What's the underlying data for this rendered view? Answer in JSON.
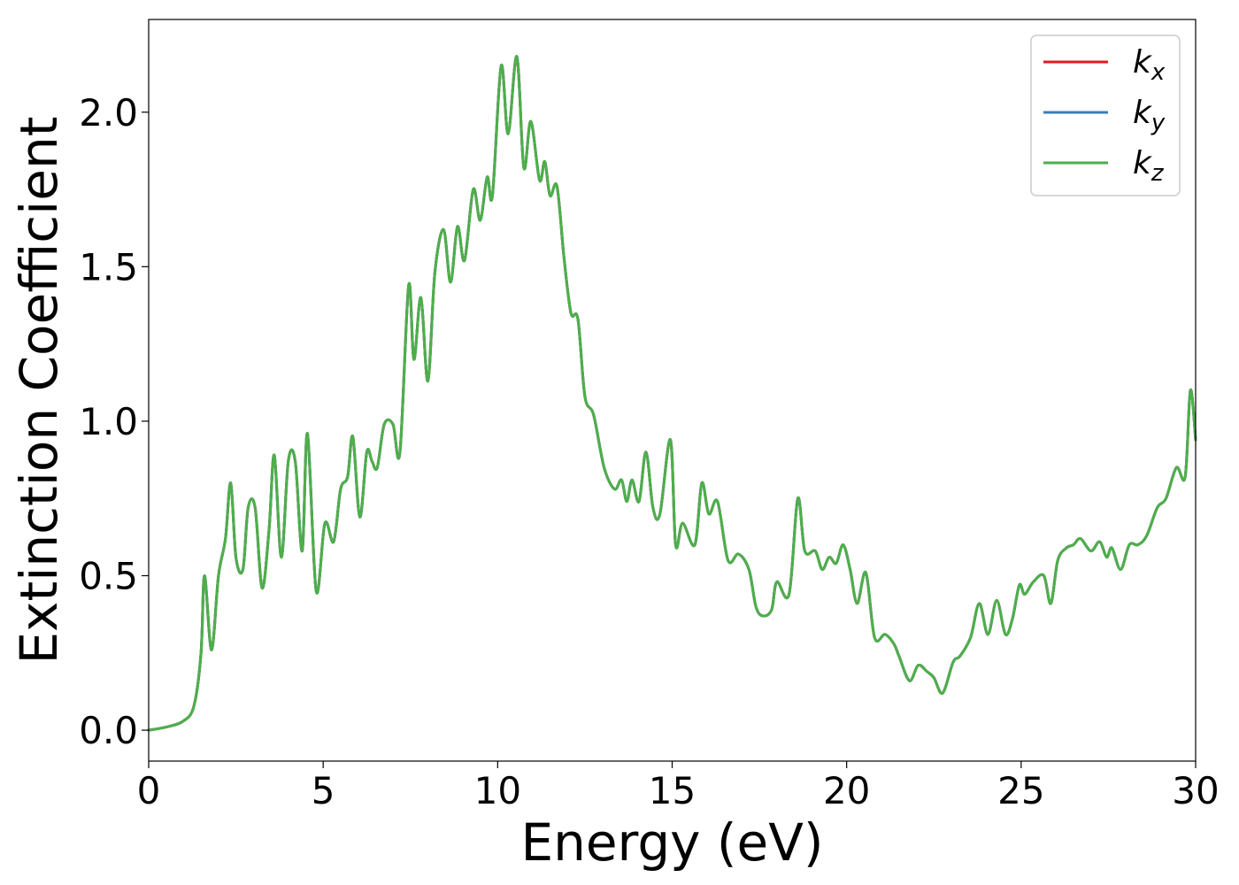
{
  "chart_data": {
    "type": "line",
    "title": "",
    "xlabel": "Energy (eV)",
    "ylabel": "Extinction Coefficient",
    "xlim": [
      0,
      30
    ],
    "ylim": [
      -0.1,
      2.3
    ],
    "xticks": [
      0,
      5,
      10,
      15,
      20,
      25,
      30
    ],
    "xtick_labels": [
      "0",
      "5",
      "10",
      "15",
      "20",
      "25",
      "30"
    ],
    "yticks": [
      0.0,
      0.5,
      1.0,
      1.5,
      2.0
    ],
    "ytick_labels": [
      "0.0",
      "0.5",
      "1.0",
      "1.5",
      "2.0"
    ],
    "grid": false,
    "legend_position": "top-right",
    "colors": {
      "kx": "#e41a1c",
      "ky": "#377eb8",
      "kz": "#4daf4a"
    },
    "series": [
      {
        "name": "k",
        "subscript": "x",
        "color": "#e41a1c",
        "key": "kx"
      },
      {
        "name": "k",
        "subscript": "y",
        "color": "#377eb8",
        "key": "ky"
      },
      {
        "name": "k",
        "subscript": "z",
        "color": "#4daf4a",
        "key": "kz"
      }
    ],
    "x": [
      0,
      0.5,
      1.0,
      1.3,
      1.5,
      1.6,
      1.8,
      2.0,
      2.2,
      2.35,
      2.5,
      2.7,
      2.85,
      3.05,
      3.25,
      3.45,
      3.6,
      3.8,
      4.0,
      4.2,
      4.4,
      4.55,
      4.8,
      5.05,
      5.3,
      5.5,
      5.7,
      5.85,
      6.05,
      6.25,
      6.4,
      6.55,
      6.75,
      7.0,
      7.2,
      7.45,
      7.6,
      7.8,
      8.0,
      8.2,
      8.45,
      8.65,
      8.85,
      9.05,
      9.3,
      9.5,
      9.7,
      9.85,
      10.1,
      10.3,
      10.55,
      10.75,
      10.95,
      11.2,
      11.35,
      11.5,
      11.7,
      11.9,
      12.1,
      12.3,
      12.5,
      12.75,
      13.05,
      13.35,
      13.55,
      13.7,
      13.85,
      14.05,
      14.25,
      14.45,
      14.65,
      14.95,
      15.1,
      15.3,
      15.65,
      15.85,
      16.05,
      16.3,
      16.6,
      16.9,
      17.2,
      17.4,
      17.6,
      17.85,
      18.0,
      18.35,
      18.6,
      18.8,
      19.1,
      19.3,
      19.5,
      19.7,
      19.9,
      20.1,
      20.3,
      20.55,
      20.8,
      21.1,
      21.35,
      21.5,
      21.8,
      22.05,
      22.3,
      22.5,
      22.75,
      23.05,
      23.25,
      23.55,
      23.8,
      24.05,
      24.3,
      24.55,
      24.75,
      24.95,
      25.1,
      25.35,
      25.65,
      25.85,
      26.05,
      26.3,
      26.5,
      26.7,
      27.0,
      27.25,
      27.45,
      27.6,
      27.85,
      28.1,
      28.35,
      28.6,
      28.9,
      29.15,
      29.45,
      29.7,
      29.85,
      30.0
    ],
    "y": [
      0.0,
      0.01,
      0.03,
      0.08,
      0.25,
      0.5,
      0.26,
      0.5,
      0.62,
      0.8,
      0.56,
      0.52,
      0.72,
      0.72,
      0.46,
      0.65,
      0.89,
      0.56,
      0.87,
      0.87,
      0.58,
      0.96,
      0.45,
      0.67,
      0.61,
      0.78,
      0.82,
      0.95,
      0.69,
      0.9,
      0.87,
      0.85,
      0.99,
      0.99,
      0.9,
      1.44,
      1.2,
      1.4,
      1.13,
      1.48,
      1.62,
      1.45,
      1.63,
      1.52,
      1.75,
      1.65,
      1.79,
      1.73,
      2.15,
      1.93,
      2.18,
      1.82,
      1.97,
      1.78,
      1.84,
      1.73,
      1.76,
      1.53,
      1.35,
      1.33,
      1.08,
      1.02,
      0.85,
      0.78,
      0.81,
      0.74,
      0.81,
      0.74,
      0.9,
      0.72,
      0.7,
      0.94,
      0.6,
      0.67,
      0.6,
      0.8,
      0.7,
      0.74,
      0.55,
      0.57,
      0.52,
      0.4,
      0.37,
      0.39,
      0.48,
      0.44,
      0.75,
      0.58,
      0.58,
      0.52,
      0.56,
      0.54,
      0.6,
      0.52,
      0.41,
      0.51,
      0.3,
      0.31,
      0.28,
      0.24,
      0.16,
      0.21,
      0.19,
      0.17,
      0.12,
      0.22,
      0.24,
      0.3,
      0.41,
      0.31,
      0.42,
      0.31,
      0.36,
      0.47,
      0.44,
      0.48,
      0.5,
      0.41,
      0.55,
      0.59,
      0.6,
      0.62,
      0.58,
      0.61,
      0.56,
      0.59,
      0.52,
      0.6,
      0.6,
      0.63,
      0.72,
      0.75,
      0.85,
      0.82,
      1.1,
      0.94
    ]
  }
}
